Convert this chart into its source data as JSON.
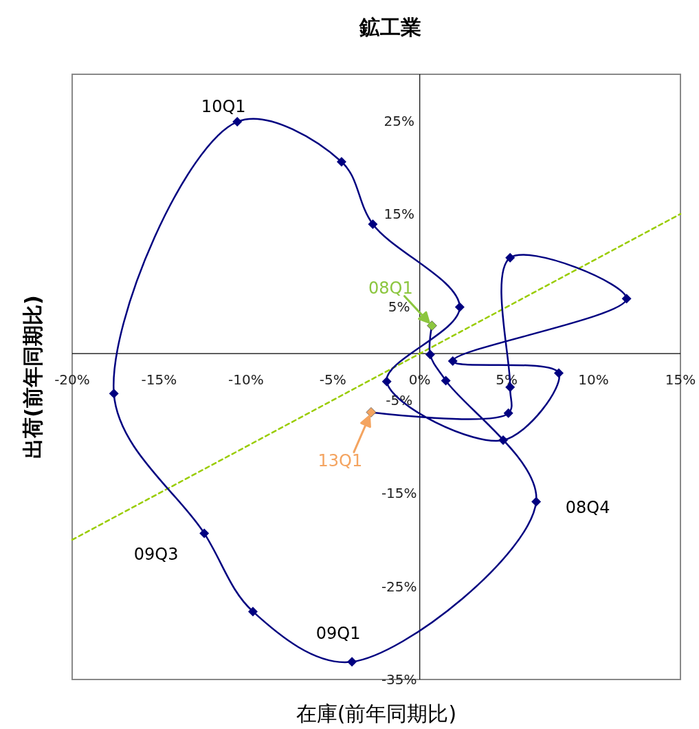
{
  "chart_data": {
    "type": "line",
    "title": "鉱工業",
    "xlabel": "在庫(前年同期比)",
    "ylabel": "出荷(前年同期比)",
    "xlim": [
      -20,
      15
    ],
    "ylim": [
      -35,
      30
    ],
    "xticks": [
      {
        "value": -20,
        "label": "-20%"
      },
      {
        "value": -15,
        "label": "-15%"
      },
      {
        "value": -10,
        "label": "-10%"
      },
      {
        "value": -5,
        "label": "-5%"
      },
      {
        "value": 0,
        "label": "0%"
      },
      {
        "value": 5,
        "label": "5%"
      },
      {
        "value": 10,
        "label": "10%"
      },
      {
        "value": 15,
        "label": "15%"
      }
    ],
    "yticks": [
      {
        "value": -35,
        "label": "-35%"
      },
      {
        "value": -25,
        "label": "-25%"
      },
      {
        "value": -15,
        "label": "-15%"
      },
      {
        "value": -5,
        "label": "-5%"
      },
      {
        "value": 5,
        "label": "5%"
      },
      {
        "value": 15,
        "label": "15%"
      },
      {
        "value": 25,
        "label": "25%"
      }
    ],
    "grid": false,
    "marker": "diamond",
    "series": [
      {
        "x": [
          -20,
          15
        ],
        "values": [
          -20,
          15
        ],
        "color": "#99cc00",
        "line_style": "dashed",
        "marker": "none"
      },
      {
        "x": [
          0.7,
          0.6,
          1.5,
          6.7,
          -3.9,
          -9.6,
          -12.4,
          -17.6,
          -10.5,
          -4.5,
          -2.7,
          2.3,
          -1.9,
          4.8,
          8.0,
          1.9,
          11.9,
          5.2,
          5.2,
          5.1,
          -2.8
        ],
        "values": [
          3.0,
          -0.1,
          -2.9,
          -15.9,
          -33.1,
          -27.7,
          -19.3,
          -4.3,
          24.9,
          20.6,
          13.9,
          5.0,
          -3.0,
          -9.3,
          -2.1,
          -0.8,
          5.9,
          10.3,
          -3.6,
          -6.4,
          -6.3
        ],
        "color": "#000080",
        "line_style": "solid",
        "colors": [
          "#8cc63f",
          "#000080",
          "#000080",
          "#000080",
          "#000080",
          "#000080",
          "#000080",
          "#000080",
          "#000080",
          "#000080",
          "#000080",
          "#000080",
          "#000080",
          "#000080",
          "#000080",
          "#000080",
          "#000080",
          "#000080",
          "#000080",
          "#000080",
          "#f4a460"
        ]
      }
    ],
    "annotations": [
      {
        "text": "10Q1",
        "x": -10.5,
        "y": 24.9
      },
      {
        "text": "09Q3",
        "x": -12.4,
        "y": -19.3
      },
      {
        "text": "09Q1",
        "x": -3.9,
        "y": -33.1
      },
      {
        "text": "08Q4",
        "x": 6.7,
        "y": -15.9
      },
      {
        "text": "08Q1",
        "x": 0.7,
        "y": 3.0
      },
      {
        "text": "13Q1",
        "x": -2.8,
        "y": -6.3
      }
    ]
  }
}
